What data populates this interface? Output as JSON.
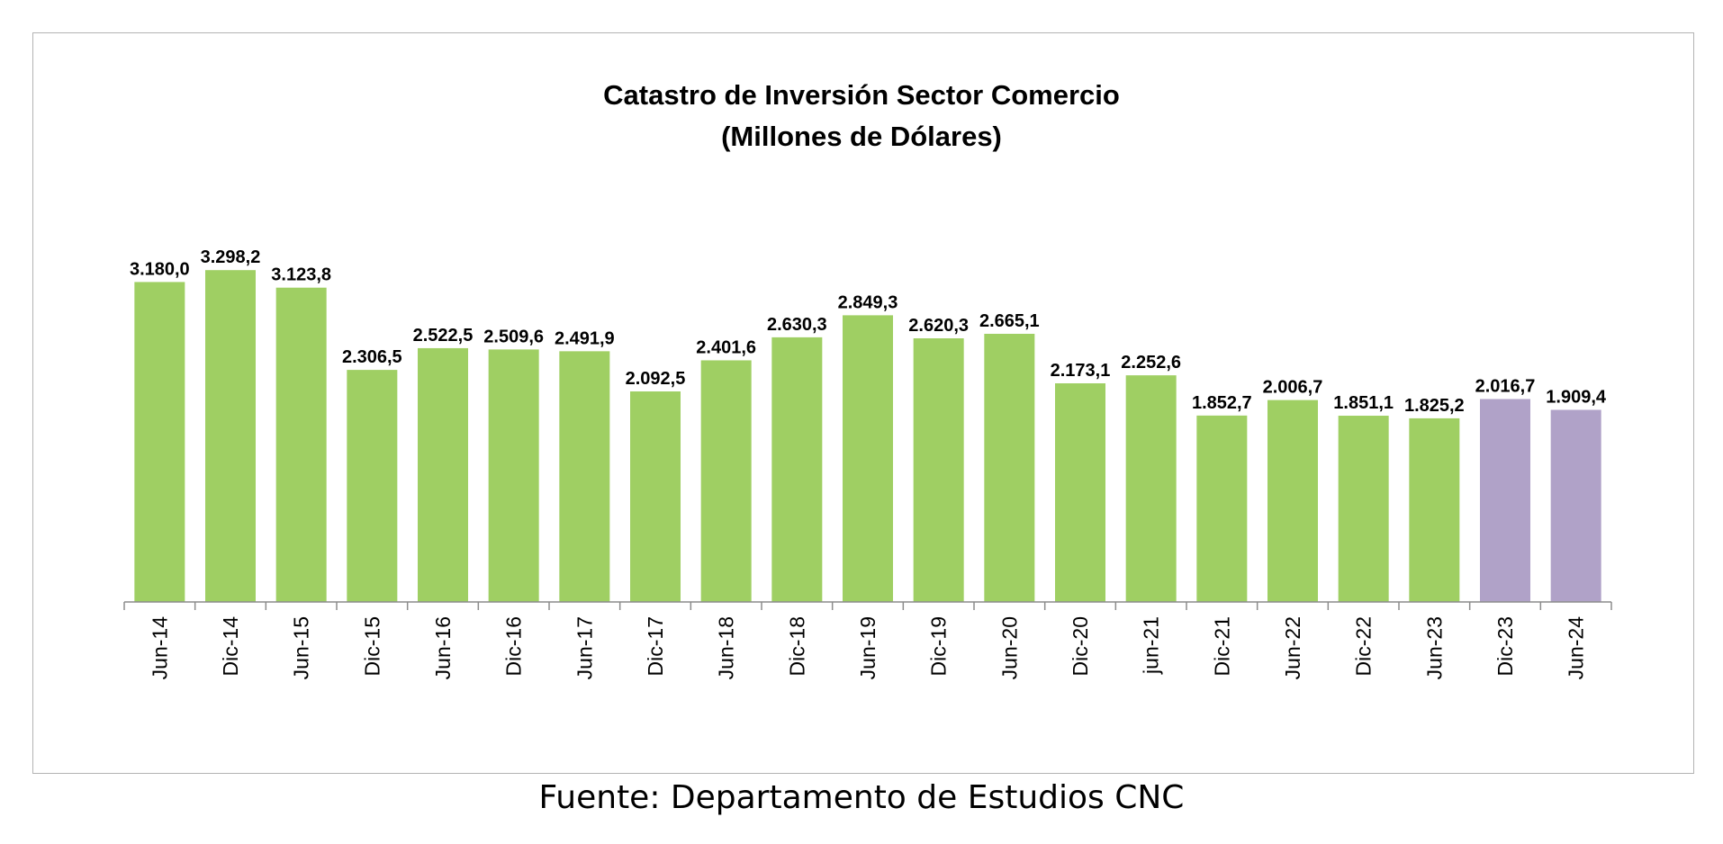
{
  "chart_data": {
    "type": "bar",
    "title": "Catastro de Inversión Sector Comercio",
    "subtitle": "(Millones de Dólares)",
    "categories": [
      "Jun-14",
      "Dic-14",
      "Jun-15",
      "Dic-15",
      "Jun-16",
      "Dic-16",
      "Jun-17",
      "Dic-17",
      "Jun-18",
      "Dic-18",
      "Jun-19",
      "Dic-19",
      "Jun-20",
      "Dic-20",
      "jun-21",
      "Dic-21",
      "Jun-22",
      "Dic-22",
      "Jun-23",
      "Dic-23",
      "Jun-24"
    ],
    "values": [
      3180.0,
      3298.2,
      3123.8,
      2306.5,
      2522.5,
      2509.6,
      2491.9,
      2092.5,
      2401.6,
      2630.3,
      2849.3,
      2620.3,
      2665.1,
      2173.1,
      2252.6,
      1852.7,
      2006.7,
      1851.1,
      1825.2,
      2016.7,
      1909.4
    ],
    "value_labels": [
      "3.180,0",
      "3.298,2",
      "3.123,8",
      "2.306,5",
      "2.522,5",
      "2.509,6",
      "2.491,9",
      "2.092,5",
      "2.401,6",
      "2.630,3",
      "2.849,3",
      "2.620,3",
      "2.665,1",
      "2.173,1",
      "2.252,6",
      "1.852,7",
      "2.006,7",
      "1.851,1",
      "1.825,2",
      "2.016,7",
      "1.909,4"
    ],
    "colors": {
      "default": "#9fcf63",
      "highlight": "#b0a2c8",
      "axis": "#8c8c8c",
      "frame": "#b3b3b3"
    },
    "highlight_categories": [
      "Dic-23",
      "Jun-24"
    ],
    "xlabel": "",
    "ylabel": "",
    "ylim": [
      0,
      3300
    ],
    "grid": false,
    "legend": "none",
    "source": "Fuente: Departamento de Estudios CNC"
  }
}
